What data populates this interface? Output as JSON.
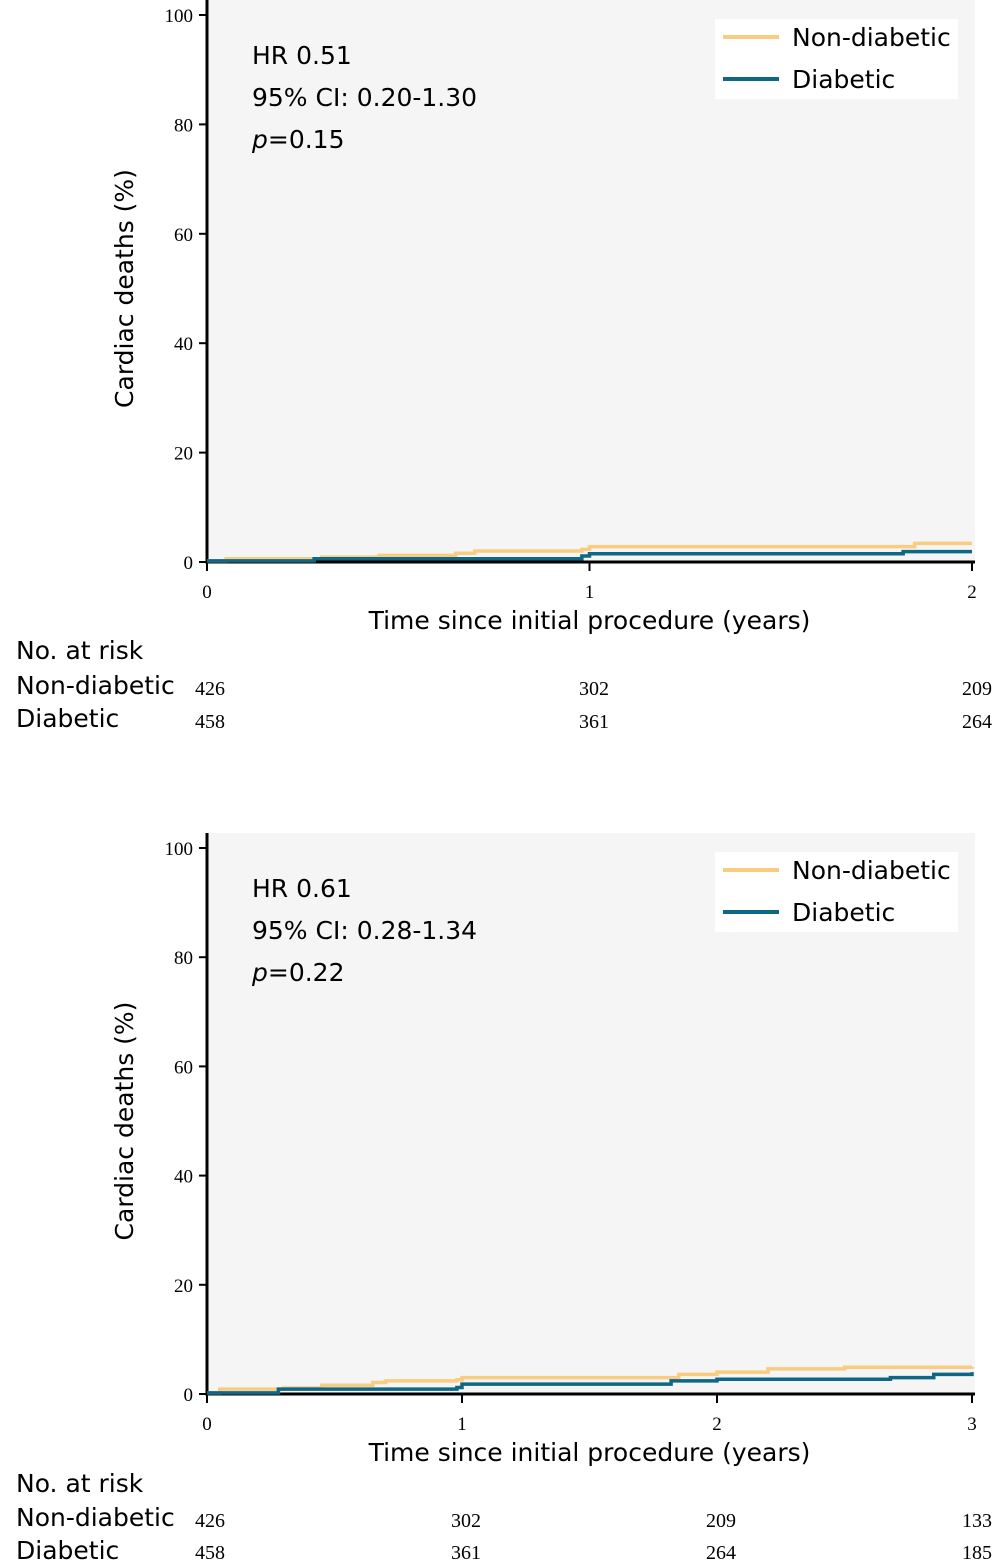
{
  "chart_data": [
    {
      "type": "line",
      "subtype": "kaplan-meier step",
      "xlabel": "Time since initial procedure (years)",
      "ylabel": "Cardiac deaths (%)",
      "xlim": [
        0,
        2
      ],
      "ylim": [
        0,
        100
      ],
      "xticks": [
        "0",
        "1",
        "2"
      ],
      "yticks": [
        "0",
        "20",
        "40",
        "60",
        "80",
        "100"
      ],
      "legend_position": "top-right",
      "annotation": {
        "hr": "HR 0.51",
        "ci": "95% CI: 0.20-1.30",
        "p_label": "p",
        "p_value": "=0.15"
      },
      "series": [
        {
          "name": "Non-diabetic",
          "color": "#f9cc7f",
          "points": [
            [
              0,
              0.2
            ],
            [
              0.05,
              0.6
            ],
            [
              0.3,
              0.9
            ],
            [
              0.45,
              1.2
            ],
            [
              0.65,
              1.6
            ],
            [
              0.7,
              2.0
            ],
            [
              0.98,
              2.3
            ],
            [
              1.0,
              2.8
            ],
            [
              1.83,
              2.8
            ],
            [
              1.85,
              3.4
            ],
            [
              2.0,
              3.4
            ]
          ]
        },
        {
          "name": "Diabetic",
          "color": "#0e6784",
          "points": [
            [
              0,
              0.2
            ],
            [
              0.28,
              0.6
            ],
            [
              0.98,
              1.1
            ],
            [
              1.0,
              1.5
            ],
            [
              1.8,
              1.5
            ],
            [
              1.82,
              1.9
            ],
            [
              2.0,
              1.9
            ]
          ]
        }
      ],
      "risk_table": {
        "title": "No. at risk",
        "rows": [
          {
            "label": "Non-diabetic",
            "values": [
              "426",
              "302",
              "209"
            ]
          },
          {
            "label": "Diabetic",
            "values": [
              "458",
              "361",
              "264"
            ]
          }
        ],
        "times": [
          0,
          1,
          2
        ]
      }
    },
    {
      "type": "line",
      "subtype": "kaplan-meier step",
      "xlabel": "Time since initial procedure (years)",
      "ylabel": "Cardiac deaths (%)",
      "xlim": [
        0,
        3
      ],
      "ylim": [
        0,
        100
      ],
      "xticks": [
        "0",
        "1",
        "2",
        "3"
      ],
      "yticks": [
        "0",
        "20",
        "40",
        "60",
        "80",
        "100"
      ],
      "legend_position": "top-right",
      "annotation": {
        "hr": "HR 0.61",
        "ci": "95% CI: 0.28-1.34",
        "p_label": "p",
        "p_value": "=0.22"
      },
      "series": [
        {
          "name": "Non-diabetic",
          "color": "#f9cc7f",
          "points": [
            [
              0,
              0.2
            ],
            [
              0.05,
              0.9
            ],
            [
              0.3,
              1.1
            ],
            [
              0.45,
              1.6
            ],
            [
              0.65,
              2.1
            ],
            [
              0.7,
              2.4
            ],
            [
              0.98,
              2.6
            ],
            [
              1.0,
              3.0
            ],
            [
              1.83,
              3.0
            ],
            [
              1.85,
              3.6
            ],
            [
              2.0,
              4.0
            ],
            [
              2.2,
              4.6
            ],
            [
              2.5,
              4.9
            ],
            [
              3.0,
              5.0
            ]
          ]
        },
        {
          "name": "Diabetic",
          "color": "#0e6784",
          "points": [
            [
              0,
              0.2
            ],
            [
              0.28,
              0.9
            ],
            [
              0.98,
              1.2
            ],
            [
              1.0,
              1.8
            ],
            [
              1.8,
              1.8
            ],
            [
              1.82,
              2.4
            ],
            [
              2.0,
              2.7
            ],
            [
              2.68,
              3.0
            ],
            [
              2.85,
              3.6
            ],
            [
              3.0,
              4.0
            ]
          ]
        }
      ],
      "risk_table": {
        "title": "No. at risk",
        "rows": [
          {
            "label": "Non-diabetic",
            "values": [
              "426",
              "302",
              "209",
              "133"
            ]
          },
          {
            "label": "Diabetic",
            "values": [
              "458",
              "361",
              "264",
              "185"
            ]
          }
        ],
        "times": [
          0,
          1,
          2,
          3
        ]
      }
    }
  ]
}
